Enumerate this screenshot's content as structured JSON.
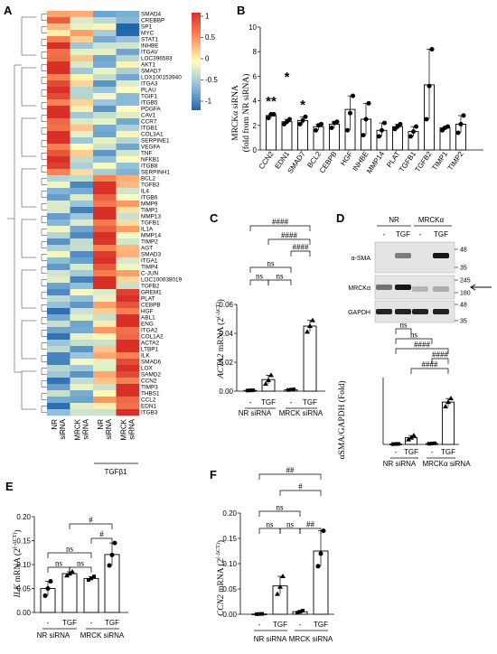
{
  "figure": {
    "panels": {
      "A": {
        "label": "A"
      },
      "B": {
        "label": "B"
      },
      "C": {
        "label": "C"
      },
      "D": {
        "label": "D"
      },
      "E": {
        "label": "E"
      },
      "F": {
        "label": "F"
      }
    }
  },
  "chart_data": [
    {
      "id": "A",
      "type": "heatmap",
      "rows": [
        "SMAD4",
        "CREBBP",
        "SP1",
        "MYC",
        "STAT1",
        "INHBE",
        "ITGAV",
        "LOC396583",
        "AKT1",
        "SMAD7",
        "LOX100153940",
        "ITGA3",
        "PLAU",
        "TGIF1",
        "ITGB5",
        "PDGFA",
        "CAV1",
        "CCR7",
        "ITGB1",
        "COL3A1",
        "SERPINE1",
        "VEGFA",
        "TNF",
        "NFKB1",
        "ITGB8",
        "SERPINH1",
        "BCL2",
        "TGFB3",
        "IL4",
        "ITGB6",
        "MMP9",
        "TIMP1",
        "MMP13",
        "TGFB1",
        "IL1A",
        "MMP14",
        "TIMP2",
        "AGT",
        "SMAD3",
        "ITGA1",
        "TIMP4",
        "C-JUN",
        "LOC100038019",
        "TGFB2",
        "GREM1",
        "PLAT",
        "CEBPB",
        "HGF",
        "ABL1",
        "ENG",
        "ITGA2",
        "COL1A2",
        "ACTA2",
        "LTBP1",
        "ILK",
        "SMAD6",
        "LOX",
        "SAMD2",
        "CCN2",
        "TIMP3",
        "THBS1",
        "CCL2",
        "EDN1",
        "ITGB3"
      ],
      "columns": [
        "NR siRNA",
        "MRCK siRNA",
        "NR siRNA",
        "MRCK siRNA"
      ],
      "column_group": "TGFβ1",
      "colorbar_ticks": [
        "1",
        "0.5",
        "0",
        "-0.5",
        "-1"
      ]
    },
    {
      "id": "B",
      "type": "bar",
      "ylabel_line1": "MRCKα siRNA",
      "ylabel_line2": "(fold from NR siRNA)",
      "categories": [
        "CCN2",
        "EDN1",
        "SMAD7",
        "BCL2",
        "CEBPB",
        "HGF",
        "INHBE",
        "MMP14",
        "PLAT",
        "TGFB1",
        "TGFB2",
        "TIMP1",
        "TIMP2"
      ],
      "values": [
        2.8,
        2.3,
        2.4,
        1.9,
        2.1,
        3.3,
        2.5,
        1.6,
        1.9,
        1.5,
        5.3,
        1.8,
        2.1
      ],
      "errors": [
        0.3,
        0.3,
        0.3,
        0.3,
        0.3,
        1.7,
        1.3,
        0.5,
        0.2,
        0.4,
        2.9,
        0.2,
        0.7
      ],
      "points": [
        [
          2.6,
          2.9,
          2.9
        ],
        [
          2.1,
          2.3,
          2.5
        ],
        [
          2.1,
          2.4,
          2.7
        ],
        [
          1.6,
          2.0,
          2.1
        ],
        [
          1.8,
          2.2,
          2.3
        ],
        [
          1.6,
          3.0,
          4.4
        ],
        [
          1.2,
          2.5,
          3.8
        ],
        [
          1.1,
          1.6,
          2.2
        ],
        [
          1.7,
          1.9,
          2.1
        ],
        [
          1.1,
          1.5,
          1.9
        ],
        [
          2.5,
          5.2,
          8.2
        ],
        [
          1.6,
          1.8,
          1.9
        ],
        [
          1.4,
          2.1,
          2.8
        ]
      ],
      "ylim": [
        0,
        10
      ],
      "yticks": [
        "0",
        "2",
        "4",
        "6",
        "8",
        "10"
      ],
      "significance": [
        "**",
        "*",
        "*"
      ]
    },
    {
      "id": "C",
      "type": "bar",
      "ylabel": "ACTA2 mRNA (2^-ΔCT)",
      "ylabel_italic": "ACTA2",
      "ylabel_rest": " mRNA (2",
      "ylabel_exp": "(-ΔCT)",
      "ylabel_close": ")",
      "conditions": [
        "-",
        "TGF",
        "-",
        "TGF"
      ],
      "groups": [
        "NR siRNA",
        "MRCK siRNA"
      ],
      "values": [
        0.0005,
        0.008,
        0.001,
        0.045
      ],
      "points": [
        [
          0.0004,
          0.0005,
          0.0006
        ],
        [
          0.005,
          0.0075,
          0.011
        ],
        [
          0.0008,
          0.001,
          0.0012
        ],
        [
          0.041,
          0.045,
          0.049
        ]
      ],
      "ylim": [
        0,
        0.06
      ],
      "yticks": [
        "0.00",
        "0.02",
        "0.04",
        "0.06"
      ],
      "brackets": [
        "####",
        "####",
        "####",
        "ns",
        "ns",
        "ns"
      ]
    },
    {
      "id": "D",
      "type": "bar",
      "blot": {
        "groups": [
          "NR",
          "MRCKα"
        ],
        "conditions": [
          "-",
          "TGF",
          "-",
          "TGF"
        ],
        "bands": [
          "α-SMA",
          "MRCKα",
          "GAPDH"
        ],
        "mw_markers": [
          "48",
          "35",
          "245",
          "180",
          "48",
          "35"
        ]
      },
      "ylabel": "αSMA/GAPDH (Fold)",
      "conditions": [
        "-",
        "TGF",
        "-",
        "TGF"
      ],
      "groups": [
        "NR siRNA",
        "MRCKα siRNA"
      ],
      "values": [
        1,
        15,
        2,
        95
      ],
      "points": [
        [
          0.8,
          1.0,
          1.2
        ],
        [
          11,
          15,
          20
        ],
        [
          1.5,
          2,
          2.5
        ],
        [
          85,
          95,
          103
        ]
      ],
      "ylim": [
        0,
        150
      ],
      "brackets": [
        "ns",
        "ns",
        "####",
        "####",
        "####",
        "ns"
      ]
    },
    {
      "id": "E",
      "type": "bar",
      "ylabel_italic": "ILK",
      "ylabel_rest": " mRNA (2",
      "ylabel_exp": "(-ΔCT)",
      "ylabel_close": ")",
      "conditions": [
        "-",
        "TGF",
        "-",
        "TGF"
      ],
      "groups": [
        "NR siRNA",
        "MRCK siRNA"
      ],
      "values": [
        0.05,
        0.081,
        0.071,
        0.121
      ],
      "points": [
        [
          0.035,
          0.05,
          0.065
        ],
        [
          0.077,
          0.081,
          0.085
        ],
        [
          0.068,
          0.071,
          0.075
        ],
        [
          0.098,
          0.12,
          0.145
        ]
      ],
      "ylim": [
        0,
        0.2
      ],
      "yticks": [
        "0.00",
        "0.05",
        "0.10",
        "0.15",
        "0.20"
      ],
      "brackets": [
        "#",
        "#",
        "ns",
        "ns",
        "ns"
      ]
    },
    {
      "id": "F",
      "type": "bar",
      "ylabel_italic": "CCN2",
      "ylabel_rest": " mRNA (2",
      "ylabel_exp": "(-ΔCT)",
      "ylabel_close": ")",
      "conditions": [
        "-",
        "TGF",
        "-",
        "TGF"
      ],
      "groups": [
        "NR siRNA",
        "MRCK siRNA"
      ],
      "values": [
        0.0005,
        0.056,
        0.005,
        0.125
      ],
      "points": [
        [
          0.0003,
          0.0005,
          0.0007
        ],
        [
          0.04,
          0.054,
          0.075
        ],
        [
          0.003,
          0.005,
          0.007
        ],
        [
          0.095,
          0.12,
          0.165
        ]
      ],
      "ylim": [
        0,
        0.2
      ],
      "yticks": [
        "0.00",
        "0.05",
        "0.10",
        "0.15",
        "0.20"
      ],
      "brackets": [
        "##",
        "#",
        "##",
        "ns",
        "ns",
        "ns"
      ]
    }
  ]
}
